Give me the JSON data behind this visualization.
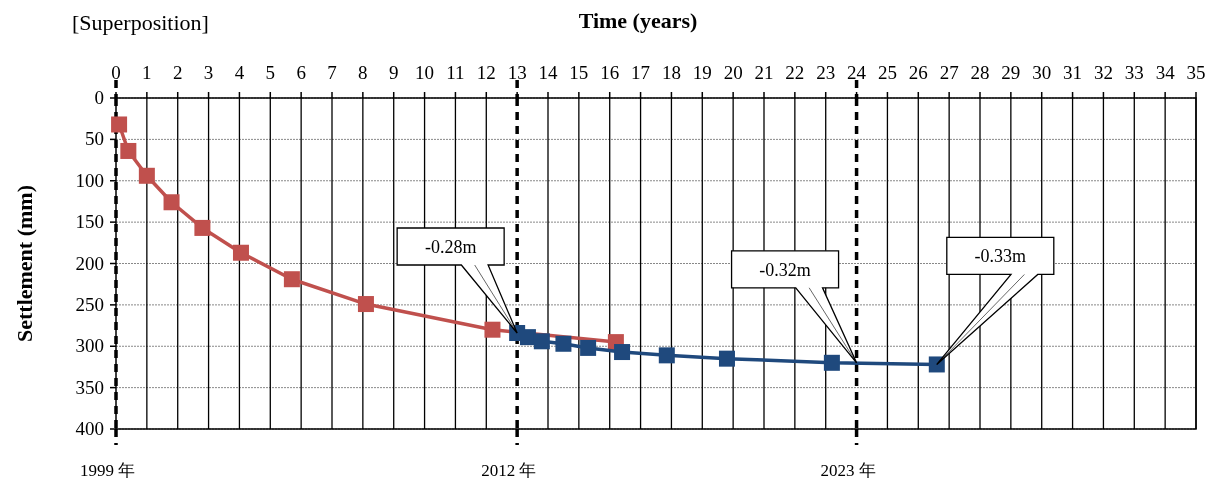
{
  "chart_data": {
    "type": "line",
    "title": "[Superposition]",
    "xlabel": "Time (years)",
    "ylabel": "Settlement (mm)",
    "xlim": [
      0,
      35
    ],
    "xticks": [
      0,
      1,
      2,
      3,
      4,
      5,
      6,
      7,
      8,
      9,
      10,
      11,
      12,
      13,
      14,
      15,
      16,
      17,
      18,
      19,
      20,
      21,
      22,
      23,
      24,
      25,
      26,
      27,
      28,
      29,
      30,
      31,
      32,
      33,
      34,
      35
    ],
    "ylim": [
      400,
      0
    ],
    "yticks": [
      0,
      50,
      100,
      150,
      200,
      250,
      300,
      350,
      400
    ],
    "grid": true,
    "marker": "square",
    "line_style": "solid",
    "series": [
      {
        "color": "#c0504d",
        "x": [
          0.1,
          0.4,
          1.0,
          1.8,
          2.8,
          4.05,
          5.7,
          8.1,
          12.2,
          16.2
        ],
        "values": [
          32,
          64,
          94,
          126,
          157,
          187,
          219,
          249,
          280,
          295
        ]
      },
      {
        "color": "#1f497d",
        "x": [
          13.0,
          13.35,
          13.8,
          14.5,
          15.3,
          16.4,
          17.85,
          19.8,
          23.2,
          26.6
        ],
        "values": [
          284,
          289,
          294,
          297,
          302,
          307,
          311,
          315,
          320,
          322
        ]
      }
    ],
    "ref_lines": [
      {
        "axis": "x",
        "value": 0,
        "label": "1999 年",
        "color": "#000000",
        "line_style": "dashed"
      },
      {
        "axis": "x",
        "value": 13,
        "label": "2012 年",
        "color": "#000000",
        "line_style": "dashed"
      },
      {
        "axis": "x",
        "value": 24,
        "label": "2023 年",
        "color": "#000000",
        "line_style": "dashed"
      }
    ],
    "annotations": [
      {
        "text": "-0.28m",
        "x": 13,
        "y": 284
      },
      {
        "text": "-0.32m",
        "x": 24,
        "y": 320
      },
      {
        "text": "-0.33m",
        "x": 26.6,
        "y": 322
      }
    ]
  }
}
